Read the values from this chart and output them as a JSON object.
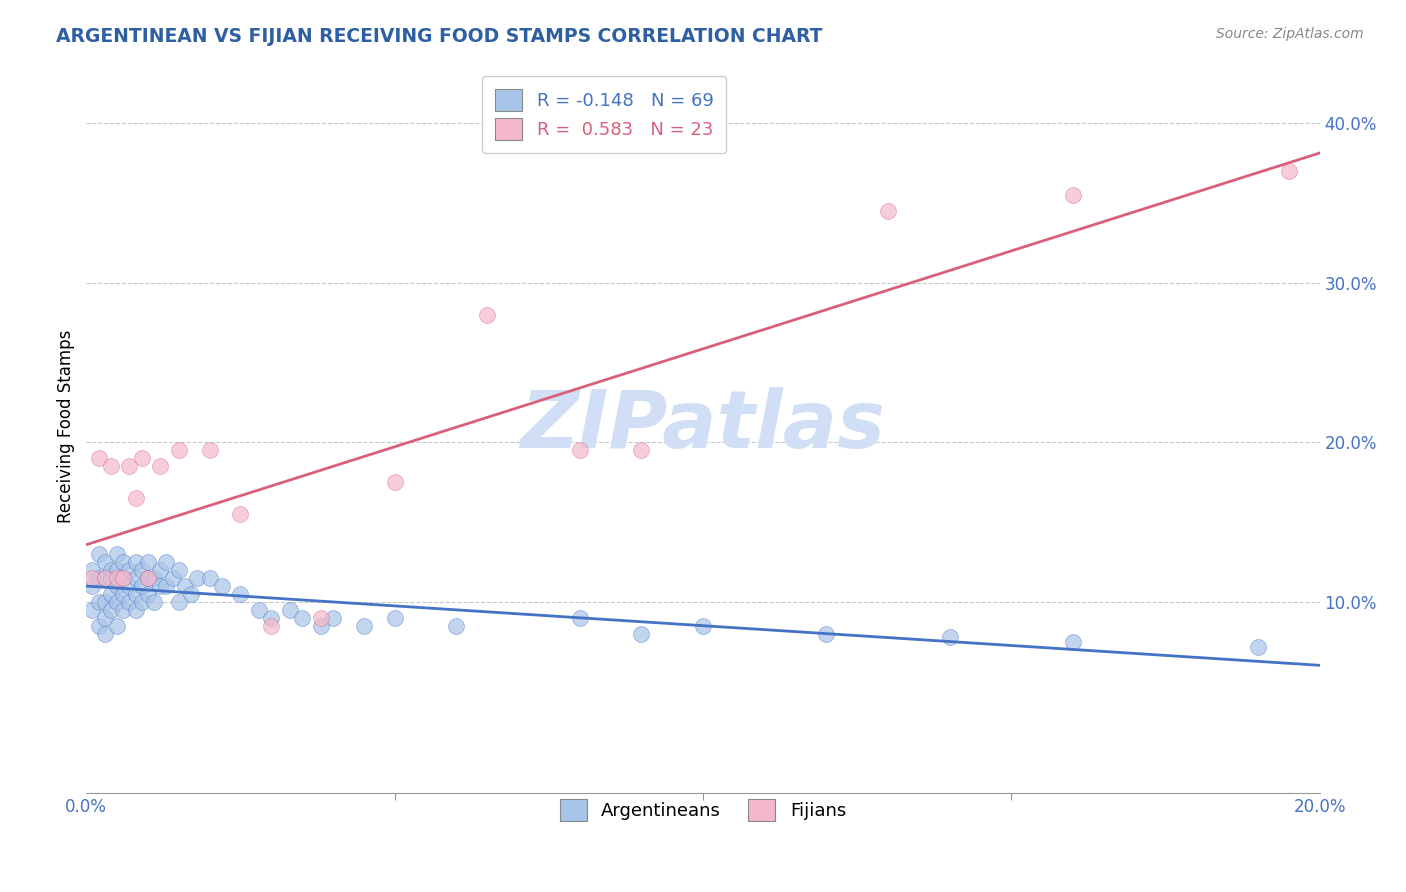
{
  "title": "ARGENTINEAN VS FIJIAN RECEIVING FOOD STAMPS CORRELATION CHART",
  "source": "Source: ZipAtlas.com",
  "ylabel": "Receiving Food Stamps",
  "xlim": [
    0.0,
    0.2
  ],
  "ylim": [
    -0.02,
    0.44
  ],
  "yticks": [
    0.1,
    0.2,
    0.3,
    0.4
  ],
  "ytick_labels": [
    "10.0%",
    "20.0%",
    "30.0%",
    "40.0%"
  ],
  "argentina_R": -0.148,
  "argentina_N": 69,
  "fijian_R": 0.583,
  "fijian_N": 23,
  "argentina_color": "#a8c4e8",
  "fijian_color": "#f4b8cb",
  "argentina_line_color": "#4472c4",
  "fijian_line_color": "#d9607a",
  "watermark": "ZIPatlas",
  "watermark_color": "#d0dff5",
  "argentina_x": [
    0.001,
    0.001,
    0.001,
    0.002,
    0.002,
    0.002,
    0.002,
    0.003,
    0.003,
    0.003,
    0.003,
    0.003,
    0.004,
    0.004,
    0.004,
    0.004,
    0.005,
    0.005,
    0.005,
    0.005,
    0.005,
    0.006,
    0.006,
    0.006,
    0.006,
    0.007,
    0.007,
    0.007,
    0.008,
    0.008,
    0.008,
    0.008,
    0.009,
    0.009,
    0.009,
    0.01,
    0.01,
    0.01,
    0.011,
    0.011,
    0.012,
    0.012,
    0.013,
    0.013,
    0.014,
    0.015,
    0.015,
    0.016,
    0.017,
    0.018,
    0.02,
    0.022,
    0.025,
    0.028,
    0.03,
    0.033,
    0.035,
    0.038,
    0.04,
    0.045,
    0.05,
    0.06,
    0.08,
    0.09,
    0.1,
    0.12,
    0.14,
    0.16,
    0.19
  ],
  "argentina_y": [
    0.12,
    0.11,
    0.095,
    0.13,
    0.115,
    0.1,
    0.085,
    0.125,
    0.115,
    0.1,
    0.09,
    0.08,
    0.12,
    0.115,
    0.105,
    0.095,
    0.13,
    0.12,
    0.11,
    0.1,
    0.085,
    0.125,
    0.115,
    0.105,
    0.095,
    0.12,
    0.11,
    0.1,
    0.125,
    0.115,
    0.105,
    0.095,
    0.12,
    0.11,
    0.1,
    0.125,
    0.115,
    0.105,
    0.115,
    0.1,
    0.12,
    0.11,
    0.125,
    0.11,
    0.115,
    0.12,
    0.1,
    0.11,
    0.105,
    0.115,
    0.115,
    0.11,
    0.105,
    0.095,
    0.09,
    0.095,
    0.09,
    0.085,
    0.09,
    0.085,
    0.09,
    0.085,
    0.09,
    0.08,
    0.085,
    0.08,
    0.078,
    0.075,
    0.072
  ],
  "fijian_x": [
    0.001,
    0.002,
    0.003,
    0.004,
    0.005,
    0.006,
    0.007,
    0.008,
    0.009,
    0.01,
    0.012,
    0.015,
    0.02,
    0.025,
    0.03,
    0.038,
    0.05,
    0.065,
    0.08,
    0.09,
    0.13,
    0.16,
    0.195
  ],
  "fijian_y": [
    0.115,
    0.19,
    0.115,
    0.185,
    0.115,
    0.115,
    0.185,
    0.165,
    0.19,
    0.115,
    0.185,
    0.195,
    0.195,
    0.155,
    0.085,
    0.09,
    0.175,
    0.28,
    0.195,
    0.195,
    0.345,
    0.355,
    0.37
  ]
}
